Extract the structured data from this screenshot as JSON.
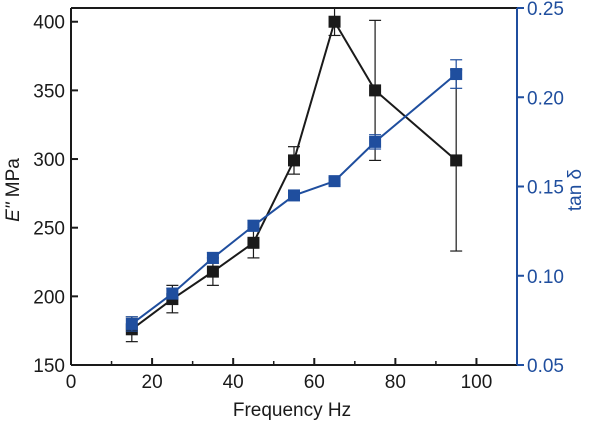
{
  "chart_data": {
    "type": "line",
    "xlabel": "Frequency Hz",
    "ylabel_left_italic": "E\"",
    "ylabel_left_unit": " MPa",
    "ylabel_right": "tan δ",
    "xlim": [
      0,
      110
    ],
    "ylim_left": [
      150,
      410
    ],
    "ylim_right": [
      0.05,
      0.25
    ],
    "xticks": [
      0,
      20,
      40,
      60,
      80,
      100
    ],
    "yticks_left": [
      150,
      200,
      250,
      300,
      350,
      400
    ],
    "yticks_right": [
      0.05,
      0.1,
      0.15,
      0.2,
      0.25
    ],
    "xtick_labels": [
      "0",
      "20",
      "40",
      "60",
      "80",
      "100"
    ],
    "ytick_labels_left": [
      "150",
      "200",
      "250",
      "300",
      "350",
      "400"
    ],
    "ytick_labels_right": [
      "0.05",
      "0.10",
      "0.15",
      "0.20",
      "0.25"
    ],
    "series": [
      {
        "axis": "left",
        "color": "#1a1a1a",
        "x": [
          15,
          25,
          35,
          45,
          55,
          65,
          75,
          95
        ],
        "y": [
          176,
          198,
          218,
          239,
          299,
          400,
          350,
          299
        ],
        "err": [
          9,
          10,
          10,
          11,
          10,
          10,
          51,
          66
        ]
      },
      {
        "axis": "right",
        "color": "#1f4e9e",
        "x": [
          15,
          25,
          35,
          45,
          55,
          65,
          75,
          95
        ],
        "y": [
          0.073,
          0.09,
          0.11,
          0.128,
          0.145,
          0.153,
          0.175,
          0.213
        ],
        "err": [
          0.004,
          0.003,
          0.003,
          0.003,
          0.002,
          0.002,
          0.004,
          0.008
        ]
      }
    ]
  }
}
